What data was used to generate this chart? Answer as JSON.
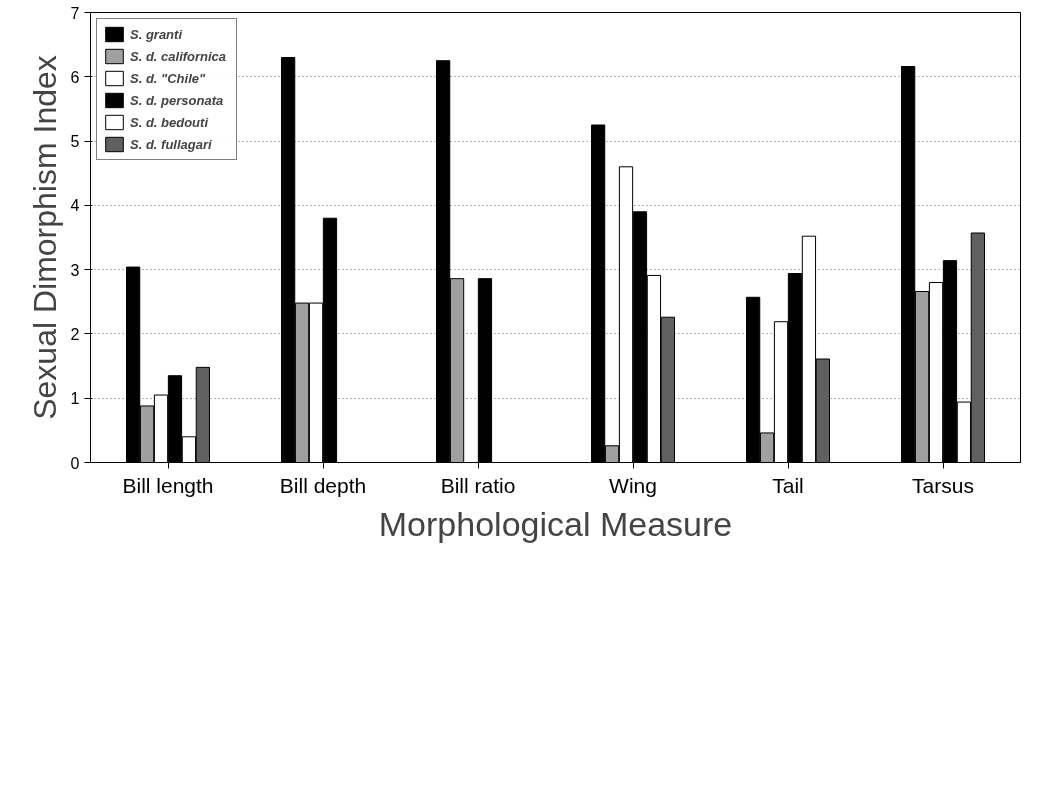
{
  "chart_data": {
    "type": "bar",
    "xlabel": "Morphological Measure",
    "ylabel": "Sexual Dimorphism Index",
    "categories": [
      "Bill length",
      "Bill depth",
      "Bill ratio",
      "Wing",
      "Tail",
      "Tarsus"
    ],
    "series": [
      {
        "name": "S. granti",
        "color": "#000000",
        "values": [
          3.04,
          6.3,
          6.25,
          5.25,
          2.57,
          6.16
        ]
      },
      {
        "name": "S. d. californica",
        "color": "#a0a0a0",
        "values": [
          0.88,
          2.48,
          2.86,
          0.26,
          0.46,
          2.66
        ]
      },
      {
        "name": "S. d. \"Chile\"",
        "color": "#ffffff",
        "values": [
          1.05,
          2.48,
          null,
          4.6,
          2.19,
          2.8
        ]
      },
      {
        "name": "S. d. personata",
        "color": "#000000",
        "values": [
          1.35,
          3.8,
          2.86,
          3.9,
          2.94,
          3.14
        ]
      },
      {
        "name": "S. d. bedouti",
        "color": "#ffffff",
        "values": [
          0.4,
          null,
          null,
          2.91,
          3.52,
          0.94
        ]
      },
      {
        "name": "S. d. fullagari",
        "color": "#606060",
        "values": [
          1.48,
          null,
          null,
          2.26,
          1.61,
          3.57
        ]
      }
    ],
    "ylim": [
      0,
      7
    ],
    "yticks": [
      0,
      1,
      2,
      3,
      4,
      5,
      6,
      7
    ],
    "grid": "y",
    "legend": "top left"
  }
}
